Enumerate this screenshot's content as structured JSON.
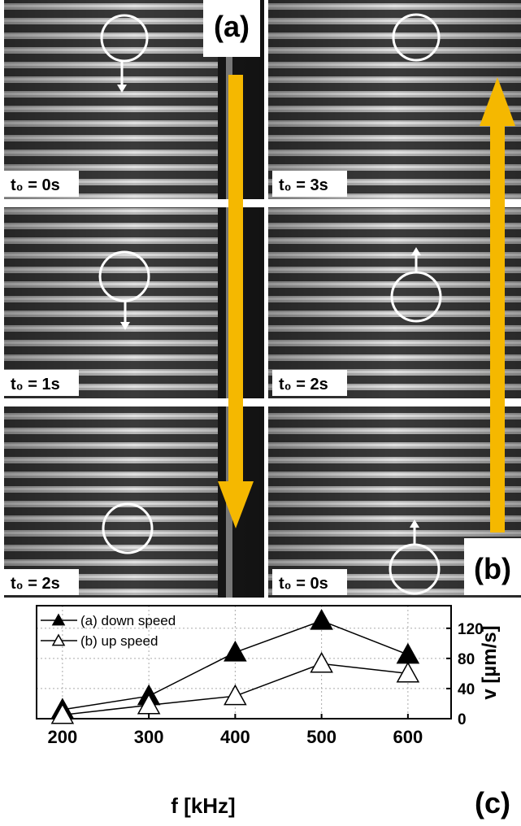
{
  "panels": {
    "left_label": "(a)",
    "right_label": "(b)",
    "left_times": [
      "t₀ = 0s",
      "t₀ = 1s",
      "t₀ = 2s"
    ],
    "right_times": [
      "t₀ = 3s",
      "t₀ = 2s",
      "t₀ = 0s"
    ]
  },
  "chart_data": {
    "type": "line",
    "panel_label": "(c)",
    "x_label": "f [kHz]",
    "y_label": "v [µm/s]",
    "x": [
      200,
      300,
      400,
      500,
      600
    ],
    "series": [
      {
        "name": "(a) down speed",
        "color": "#000000",
        "values": [
          12,
          30,
          88,
          130,
          85
        ]
      },
      {
        "name": "(b) up speed",
        "color": "#ffffff",
        "values": [
          5,
          18,
          30,
          73,
          60
        ]
      }
    ],
    "xlim": [
      170,
      650
    ],
    "xticks": [
      200,
      300,
      400,
      500,
      600
    ],
    "ylim": [
      0,
      150
    ],
    "yticks": [
      0,
      40,
      80,
      120
    ],
    "grid": true,
    "legend": "upper-left"
  }
}
